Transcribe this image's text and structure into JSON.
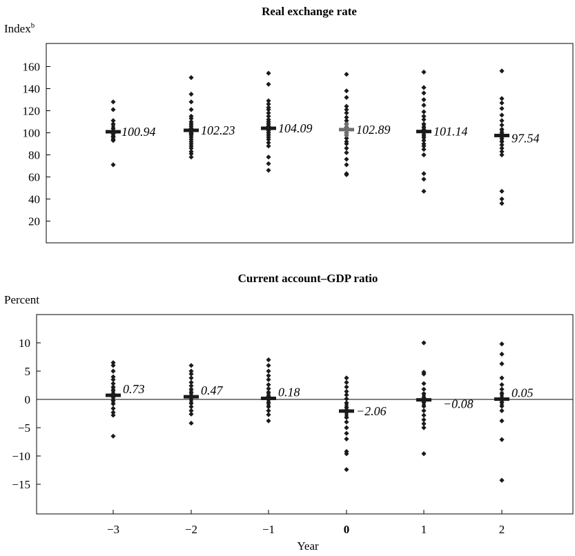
{
  "chart_data": [
    {
      "type": "scatter",
      "title": "Real exchange rate",
      "ylabel": "Index",
      "ylabel_superscript": "b",
      "ylim": [
        5,
        170
      ],
      "yticks": [
        20,
        40,
        60,
        80,
        100,
        120,
        140,
        160
      ],
      "tick_labels": [
        "20",
        "40",
        "60",
        "80",
        "100",
        "120",
        "140",
        "160"
      ],
      "grid": false,
      "zero_line": false,
      "x": [
        -3,
        -2,
        -1,
        0,
        1,
        2
      ],
      "means": [
        100.94,
        102.23,
        104.09,
        102.89,
        101.14,
        97.54
      ],
      "mean_labels": [
        "100.94",
        "102.23",
        "104.09",
        "102.89",
        "101.14",
        "97.54"
      ],
      "highlight_index": 3,
      "colors": {
        "marker": "#1a1a1a",
        "mean": "#1a1a1a",
        "highlight_mean": "#6e6e6e"
      },
      "points": [
        [
          128,
          121,
          111,
          108,
          104,
          101,
          99,
          97,
          96,
          94,
          93,
          71
        ],
        [
          150,
          135,
          128,
          121,
          115,
          113,
          110,
          108,
          106,
          104,
          102,
          100,
          99,
          98,
          96,
          94,
          92,
          90,
          88,
          86,
          83,
          81,
          78
        ],
        [
          154,
          144,
          129,
          126,
          123,
          121,
          118,
          115,
          112,
          110,
          108,
          106,
          104,
          102,
          100,
          98,
          96,
          94,
          91,
          88,
          78,
          72,
          66
        ],
        [
          153,
          138,
          132,
          124,
          121,
          118,
          114,
          111,
          108,
          105,
          103,
          100,
          98,
          95,
          92,
          90,
          86,
          82,
          76,
          71,
          63,
          62
        ],
        [
          155,
          141,
          136,
          130,
          125,
          119,
          115,
          112,
          108,
          105,
          103,
          100,
          98,
          96,
          93,
          90,
          88,
          85,
          80,
          63,
          58,
          47
        ],
        [
          156,
          131,
          127,
          122,
          116,
          111,
          107,
          103,
          100,
          98,
          95,
          92,
          89,
          86,
          83,
          80,
          47,
          40,
          36
        ]
      ]
    },
    {
      "type": "scatter",
      "title": "Current account–GDP ratio",
      "ylabel": "Percent",
      "xlabel": "Year",
      "ylim": [
        -20,
        15
      ],
      "yticks": [
        -15,
        -10,
        -5,
        0,
        5,
        10
      ],
      "tick_labels": [
        "−15",
        "−10",
        "−5",
        "0",
        "5",
        "10"
      ],
      "grid": false,
      "zero_line": true,
      "x": [
        -3,
        -2,
        -1,
        0,
        1,
        2
      ],
      "x_tick_labels": [
        "−3",
        "−2",
        "−1",
        "0",
        "1",
        "2"
      ],
      "bold_x_index": 3,
      "means": [
        0.73,
        0.47,
        0.18,
        -2.06,
        -0.08,
        0.05
      ],
      "mean_labels": [
        "0.73",
        "0.47",
        "0.18",
        "−2.06",
        "−0.08",
        "0.05"
      ],
      "colors": {
        "marker": "#1a1a1a",
        "mean": "#1a1a1a",
        "zero_line": "#000000"
      },
      "points": [
        [
          6.5,
          6.0,
          5.0,
          4.0,
          3.5,
          2.8,
          2.2,
          1.6,
          1.0,
          0.4,
          -0.2,
          -0.8,
          -1.6,
          -2.3,
          -2.8,
          -6.5
        ],
        [
          6.0,
          5.0,
          4.5,
          3.8,
          3.0,
          2.4,
          1.8,
          1.2,
          0.6,
          0.0,
          -0.7,
          -1.3,
          -2.0,
          -2.6,
          -4.2
        ],
        [
          7.0,
          6.0,
          5.0,
          4.2,
          3.5,
          2.6,
          1.9,
          1.2,
          0.6,
          0.0,
          -0.6,
          -1.3,
          -2.0,
          -2.7,
          -3.8
        ],
        [
          3.8,
          3.0,
          2.2,
          1.4,
          0.8,
          0.1,
          -0.6,
          -1.4,
          -2.2,
          -3.2,
          -4.0,
          -5.0,
          -6.0,
          -7.0,
          -9.2,
          -9.6,
          -12.4
        ],
        [
          10.0,
          4.8,
          4.5,
          2.8,
          1.8,
          1.0,
          0.3,
          -0.5,
          -1.2,
          -2.0,
          -2.8,
          -3.6,
          -4.3,
          -5.0,
          -9.6
        ],
        [
          9.8,
          8.0,
          6.3,
          3.8,
          2.6,
          1.8,
          1.0,
          0.2,
          -0.5,
          -1.2,
          -2.0,
          -3.8,
          -7.1,
          -14.3
        ]
      ]
    }
  ]
}
